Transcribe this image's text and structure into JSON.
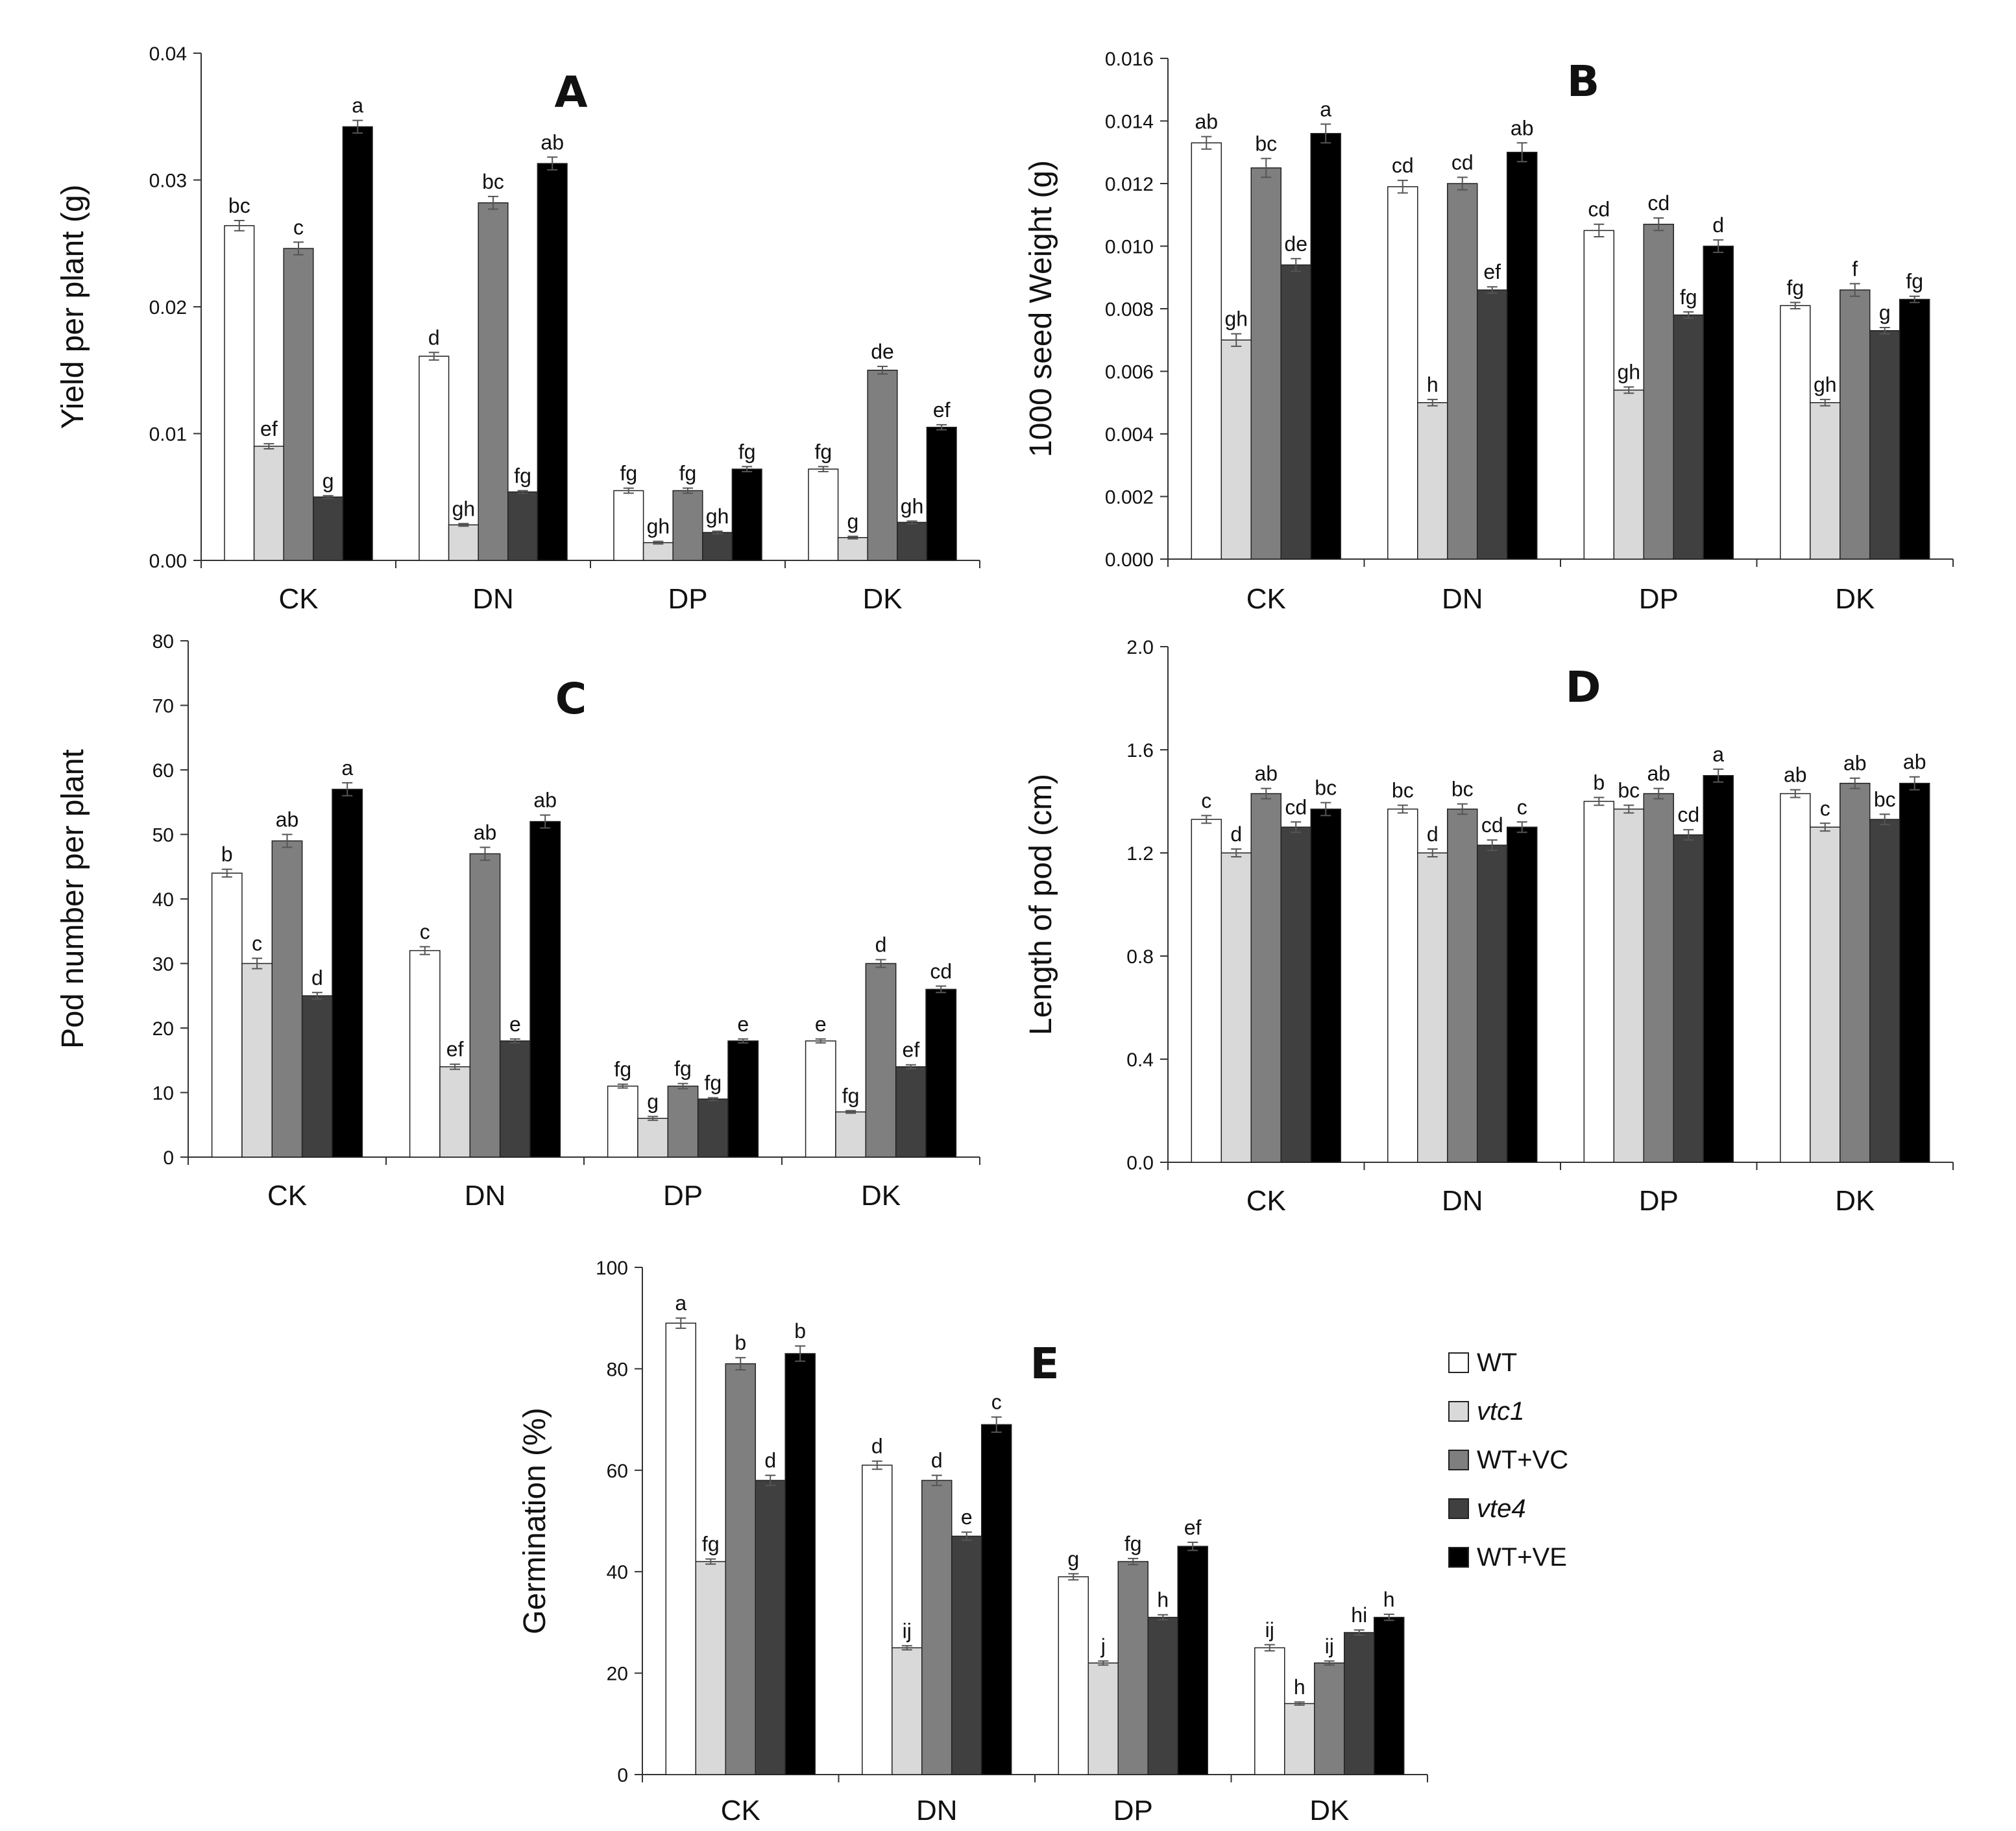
{
  "legend": {
    "items": [
      {
        "label": "WT",
        "italic": false,
        "color": "#ffffff"
      },
      {
        "label": "vtc1",
        "italic": true,
        "color": "#d9d9d9"
      },
      {
        "label": "WT+VC",
        "italic": false,
        "color": "#7f7f7f"
      },
      {
        "label": "vte4",
        "italic": true,
        "color": "#404040"
      },
      {
        "label": "WT+VE",
        "italic": false,
        "color": "#000000"
      }
    ]
  },
  "chart_data": [
    {
      "panel": "A",
      "type": "bar",
      "ylabel": "Yield per plant (g)",
      "ylim": [
        0,
        0.04
      ],
      "yticks": [
        "0.00",
        "0.01",
        "0.02",
        "0.03",
        "0.04"
      ],
      "categories": [
        "CK",
        "DN",
        "DP",
        "DK"
      ],
      "series": [
        {
          "name": "WT",
          "values": [
            0.0264,
            0.0161,
            0.0055,
            0.0072
          ],
          "errors": [
            0.0004,
            0.0003,
            0.0002,
            0.0002
          ],
          "letters": [
            "bc",
            "d",
            "fg",
            "fg"
          ]
        },
        {
          "name": "vtc1",
          "values": [
            0.009,
            0.0028,
            0.0014,
            0.0018
          ],
          "errors": [
            0.0002,
            0.0001,
            0.0001,
            0.0001
          ],
          "letters": [
            "ef",
            "gh",
            "gh",
            "g"
          ]
        },
        {
          "name": "WT+VC",
          "values": [
            0.0246,
            0.0282,
            0.0055,
            0.015
          ],
          "errors": [
            0.0005,
            0.0005,
            0.0002,
            0.0003
          ],
          "letters": [
            "c",
            "bc",
            "fg",
            "de"
          ]
        },
        {
          "name": "vte4",
          "values": [
            0.005,
            0.0054,
            0.0022,
            0.003
          ],
          "errors": [
            0.0001,
            0.0001,
            0.0001,
            0.0001
          ],
          "letters": [
            "g",
            "fg",
            "gh",
            "gh"
          ]
        },
        {
          "name": "WT+VE",
          "values": [
            0.0342,
            0.0313,
            0.0072,
            0.0105
          ],
          "errors": [
            0.0005,
            0.0005,
            0.0002,
            0.0002
          ],
          "letters": [
            "a",
            "ab",
            "fg",
            "ef"
          ]
        }
      ]
    },
    {
      "panel": "B",
      "type": "bar",
      "ylabel": "1000 seed Weight (g)",
      "ylim": [
        0,
        0.016
      ],
      "yticks": [
        "0.000",
        "0.002",
        "0.004",
        "0.006",
        "0.008",
        "0.010",
        "0.012",
        "0.014",
        "0.016"
      ],
      "categories": [
        "CK",
        "DN",
        "DP",
        "DK"
      ],
      "series": [
        {
          "name": "WT",
          "values": [
            0.0133,
            0.0119,
            0.0105,
            0.0081
          ],
          "errors": [
            0.0002,
            0.0002,
            0.0002,
            0.0001
          ],
          "letters": [
            "ab",
            "cd",
            "cd",
            "fg"
          ]
        },
        {
          "name": "vtc1",
          "values": [
            0.007,
            0.005,
            0.0054,
            0.005
          ],
          "errors": [
            0.0002,
            0.0001,
            0.0001,
            0.0001
          ],
          "letters": [
            "gh",
            "h",
            "gh",
            "gh"
          ]
        },
        {
          "name": "WT+VC",
          "values": [
            0.0125,
            0.012,
            0.0107,
            0.0086
          ],
          "errors": [
            0.0003,
            0.0002,
            0.0002,
            0.0002
          ],
          "letters": [
            "bc",
            "cd",
            "cd",
            "f"
          ]
        },
        {
          "name": "vte4",
          "values": [
            0.0094,
            0.0086,
            0.0078,
            0.0073
          ],
          "errors": [
            0.0002,
            0.0001,
            0.0001,
            0.0001
          ],
          "letters": [
            "de",
            "ef",
            "fg",
            "g"
          ]
        },
        {
          "name": "WT+VE",
          "values": [
            0.0136,
            0.013,
            0.01,
            0.0083
          ],
          "errors": [
            0.0003,
            0.0003,
            0.0002,
            0.0001
          ],
          "letters": [
            "a",
            "ab",
            "d",
            "fg"
          ]
        }
      ]
    },
    {
      "panel": "C",
      "type": "bar",
      "ylabel": "Pod number per plant",
      "ylim": [
        0,
        80
      ],
      "yticks": [
        "0",
        "10",
        "20",
        "30",
        "40",
        "50",
        "60",
        "70",
        "80"
      ],
      "categories": [
        "CK",
        "DN",
        "DP",
        "DK"
      ],
      "series": [
        {
          "name": "WT",
          "values": [
            44,
            32,
            11,
            18
          ],
          "errors": [
            0.6,
            0.6,
            0.3,
            0.3
          ],
          "letters": [
            "b",
            "c",
            "fg",
            "e"
          ]
        },
        {
          "name": "vtc1",
          "values": [
            30,
            14,
            6,
            7
          ],
          "errors": [
            0.8,
            0.4,
            0.3,
            0.2
          ],
          "letters": [
            "c",
            "ef",
            "g",
            "fg"
          ]
        },
        {
          "name": "WT+VC",
          "values": [
            49,
            47,
            11,
            30
          ],
          "errors": [
            1.0,
            1.0,
            0.4,
            0.6
          ],
          "letters": [
            "ab",
            "ab",
            "fg",
            "d"
          ]
        },
        {
          "name": "vte4",
          "values": [
            25,
            18,
            9,
            14
          ],
          "errors": [
            0.5,
            0.3,
            0.2,
            0.3
          ],
          "letters": [
            "d",
            "e",
            "fg",
            "ef"
          ]
        },
        {
          "name": "WT+VE",
          "values": [
            57,
            52,
            18,
            26
          ],
          "errors": [
            1.0,
            1.0,
            0.3,
            0.5
          ],
          "letters": [
            "a",
            "ab",
            "e",
            "cd"
          ]
        }
      ]
    },
    {
      "panel": "D",
      "type": "bar",
      "ylabel": "Length of pod (cm)",
      "ylim": [
        0,
        2.0
      ],
      "yticks": [
        "0.0",
        "0.4",
        "0.8",
        "1.2",
        "1.6",
        "2.0"
      ],
      "categories": [
        "CK",
        "DN",
        "DP",
        "DK"
      ],
      "series": [
        {
          "name": "WT",
          "values": [
            1.33,
            1.37,
            1.4,
            1.43
          ],
          "errors": [
            0.015,
            0.015,
            0.015,
            0.015
          ],
          "letters": [
            "c",
            "bc",
            "b",
            "ab"
          ]
        },
        {
          "name": "vtc1",
          "values": [
            1.2,
            1.2,
            1.37,
            1.3
          ],
          "errors": [
            0.015,
            0.015,
            0.015,
            0.015
          ],
          "letters": [
            "d",
            "d",
            "bc",
            "c"
          ]
        },
        {
          "name": "WT+VC",
          "values": [
            1.43,
            1.37,
            1.43,
            1.47
          ],
          "errors": [
            0.02,
            0.02,
            0.02,
            0.02
          ],
          "letters": [
            "ab",
            "bc",
            "ab",
            "ab"
          ]
        },
        {
          "name": "vte4",
          "values": [
            1.3,
            1.23,
            1.27,
            1.33
          ],
          "errors": [
            0.02,
            0.02,
            0.02,
            0.02
          ],
          "letters": [
            "cd",
            "cd",
            "cd",
            "bc"
          ]
        },
        {
          "name": "WT+VE",
          "values": [
            1.37,
            1.3,
            1.5,
            1.47
          ],
          "errors": [
            0.025,
            0.02,
            0.025,
            0.025
          ],
          "letters": [
            "bc",
            "c",
            "a",
            "ab"
          ]
        }
      ]
    },
    {
      "panel": "E",
      "type": "bar",
      "ylabel": "Germination (%)",
      "ylim": [
        0,
        100
      ],
      "yticks": [
        "0",
        "20",
        "40",
        "60",
        "80",
        "100"
      ],
      "categories": [
        "CK",
        "DN",
        "DP",
        "DK"
      ],
      "series": [
        {
          "name": "WT",
          "values": [
            89,
            61,
            39,
            25
          ],
          "errors": [
            1.0,
            0.8,
            0.6,
            0.6
          ],
          "letters": [
            "a",
            "d",
            "g",
            "ij"
          ]
        },
        {
          "name": "vtc1",
          "values": [
            42,
            25,
            22,
            14
          ],
          "errors": [
            0.5,
            0.4,
            0.4,
            0.3
          ],
          "letters": [
            "fg",
            "ij",
            "j",
            "h"
          ]
        },
        {
          "name": "WT+VC",
          "values": [
            81,
            58,
            42,
            22
          ],
          "errors": [
            1.2,
            1.0,
            0.6,
            0.4
          ],
          "letters": [
            "b",
            "d",
            "fg",
            "ij"
          ]
        },
        {
          "name": "vte4",
          "values": [
            58,
            47,
            31,
            28
          ],
          "errors": [
            1.0,
            0.8,
            0.5,
            0.5
          ],
          "letters": [
            "d",
            "e",
            "h",
            "hi"
          ]
        },
        {
          "name": "WT+VE",
          "values": [
            83,
            69,
            45,
            31
          ],
          "errors": [
            1.5,
            1.5,
            0.8,
            0.6
          ],
          "letters": [
            "b",
            "c",
            "ef",
            "h"
          ]
        }
      ]
    }
  ]
}
